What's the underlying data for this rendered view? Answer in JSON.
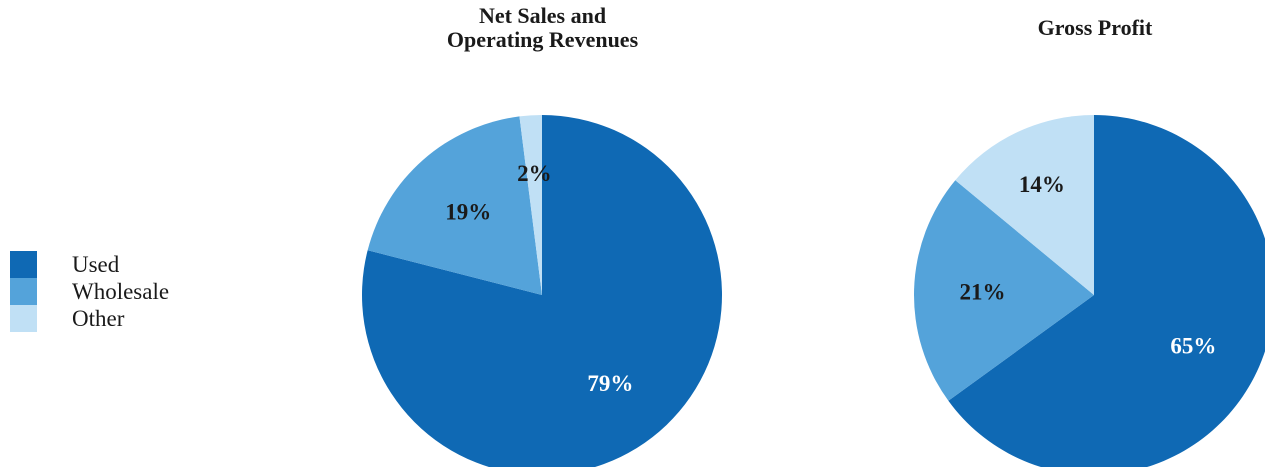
{
  "legend": {
    "items": [
      {
        "label": "Used",
        "color": "#0f69b4"
      },
      {
        "label": "Wholesale",
        "color": "#54a3da"
      },
      {
        "label": "Other",
        "color": "#c0e0f5"
      }
    ]
  },
  "chart_data": [
    {
      "type": "pie",
      "title_lines": [
        "Net Sales and",
        "Operating Revenues"
      ],
      "slices": [
        {
          "label": "Used",
          "value": 79,
          "text": "79%",
          "color": "#0f69b4",
          "label_color": "#ffffff"
        },
        {
          "label": "Wholesale",
          "value": 19,
          "text": "19%",
          "color": "#54a3da",
          "label_color": "#1a1a1a"
        },
        {
          "label": "Other",
          "value": 2,
          "text": "2%",
          "color": "#c0e0f5",
          "label_color": "#1a1a1a"
        }
      ]
    },
    {
      "type": "pie",
      "title_lines": [
        "Gross Profit"
      ],
      "slices": [
        {
          "label": "Used",
          "value": 65,
          "text": "65%",
          "color": "#0f69b4",
          "label_color": "#ffffff"
        },
        {
          "label": "Wholesale",
          "value": 21,
          "text": "21%",
          "color": "#54a3da",
          "label_color": "#1a1a1a"
        },
        {
          "label": "Other",
          "value": 14,
          "text": "14%",
          "color": "#c0e0f5",
          "label_color": "#1a1a1a"
        }
      ]
    }
  ]
}
